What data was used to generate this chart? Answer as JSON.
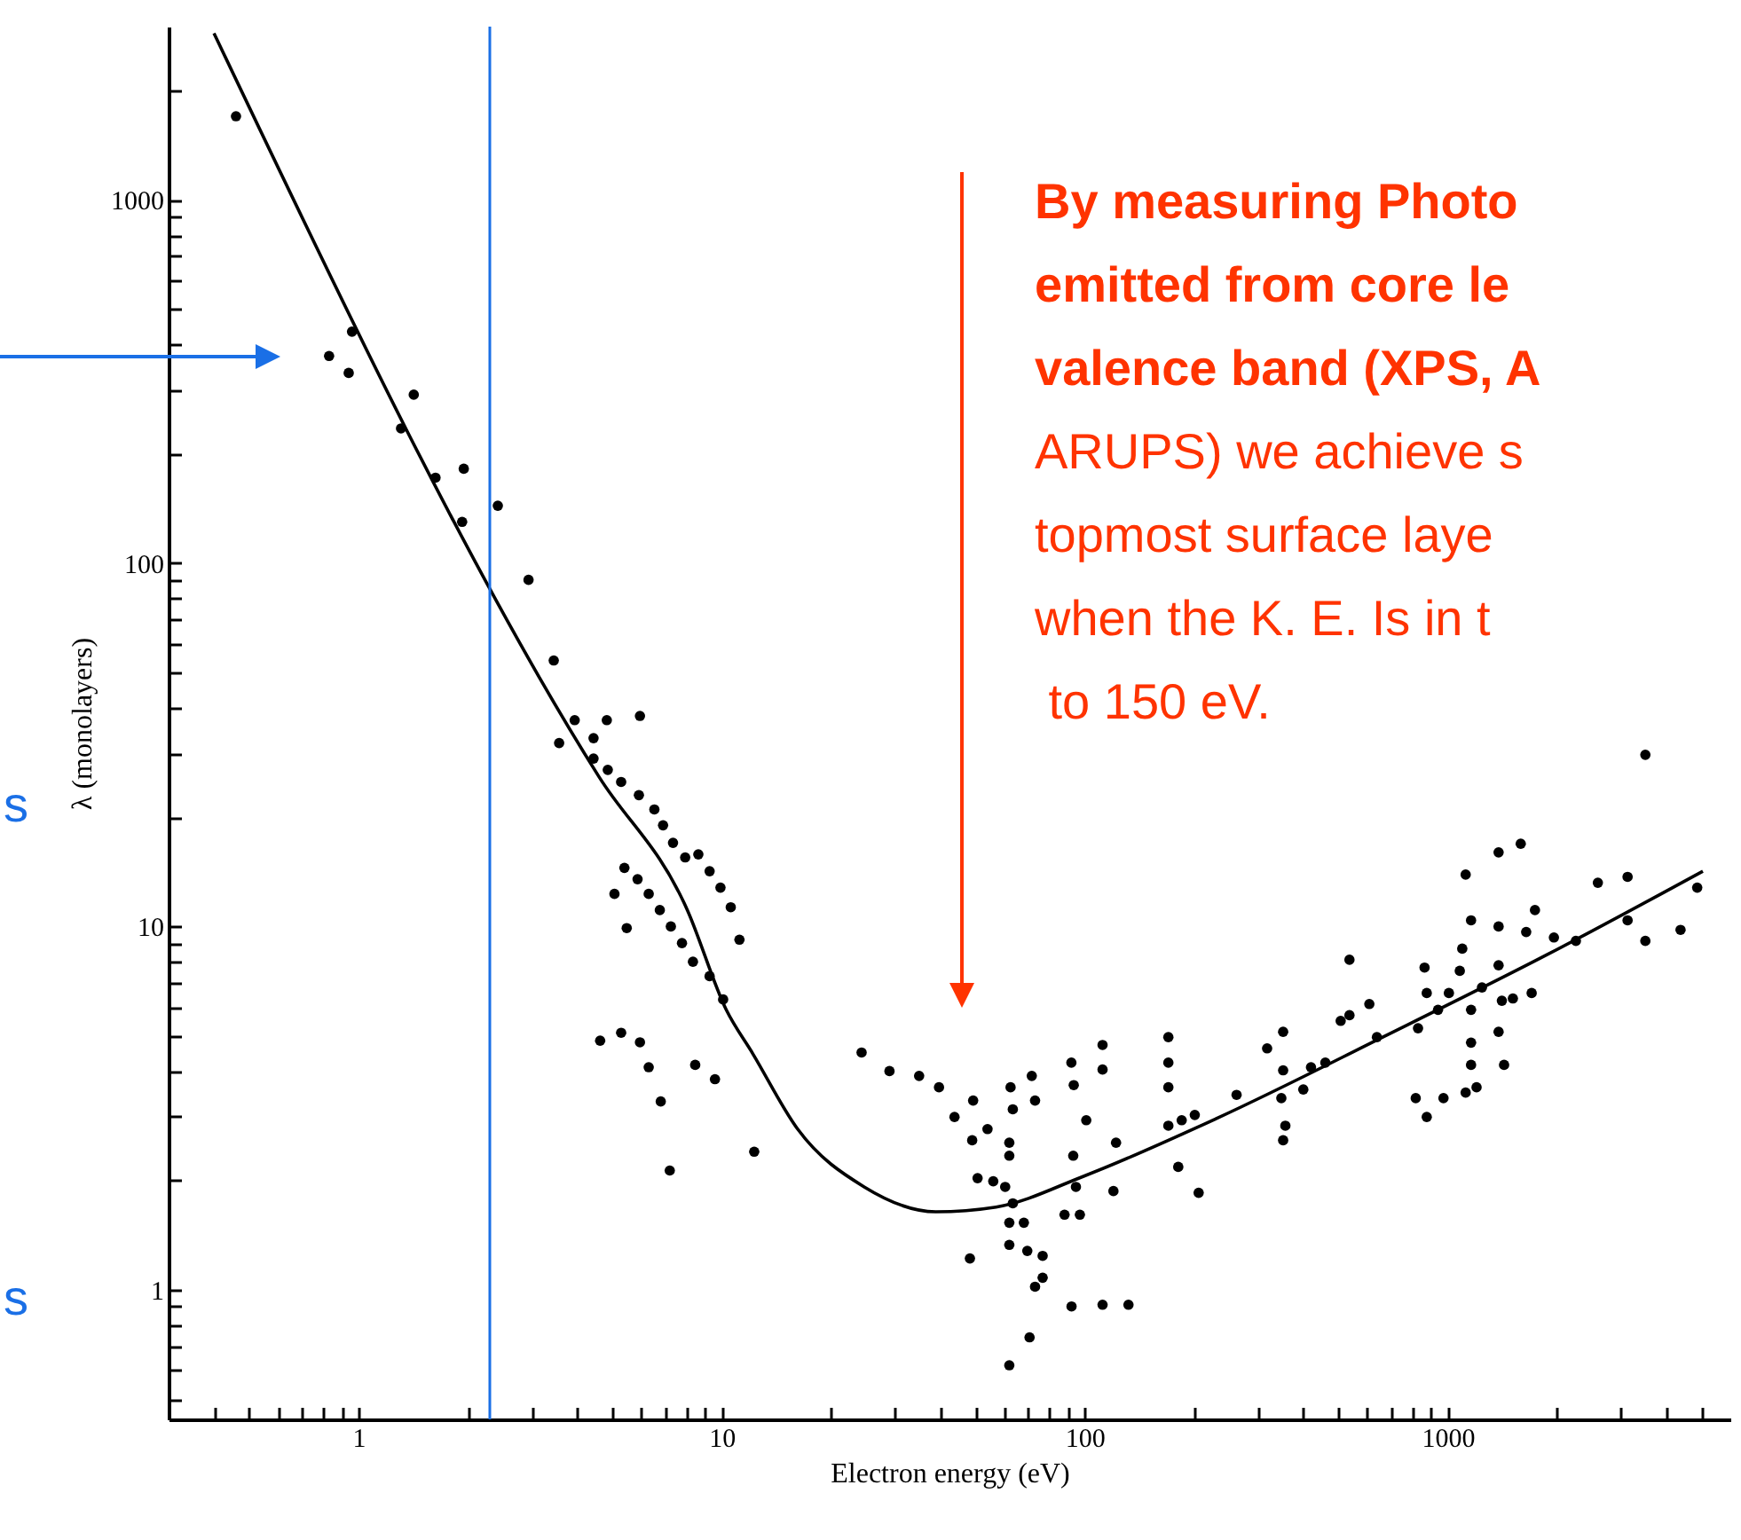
{
  "chart_data": {
    "type": "scatter",
    "xlabel": "Electron energy (eV)",
    "ylabel": "λ (monolayers)",
    "log": "xy",
    "grid": false,
    "marker": "circle",
    "xlim": [
      0.3,
      6000
    ],
    "ylim": [
      0.44,
      3000
    ],
    "xticks": [
      {
        "value": 0.4,
        "label": null
      },
      {
        "value": 0.5,
        "label": null
      },
      {
        "value": 0.6,
        "label": null
      },
      {
        "value": 0.7,
        "label": null
      },
      {
        "value": 0.8,
        "label": null
      },
      {
        "value": 0.9,
        "label": null
      },
      1,
      {
        "value": 2,
        "label": null
      },
      {
        "value": 3,
        "label": null
      },
      {
        "value": 4,
        "label": null
      },
      {
        "value": 5,
        "label": null
      },
      {
        "value": 6,
        "label": null
      },
      {
        "value": 7,
        "label": null
      },
      {
        "value": 8,
        "label": null
      },
      {
        "value": 9,
        "label": null
      },
      10,
      {
        "value": 20,
        "label": null
      },
      {
        "value": 30,
        "label": null
      },
      {
        "value": 40,
        "label": null
      },
      {
        "value": 50,
        "label": null
      },
      {
        "value": 60,
        "label": null
      },
      {
        "value": 70,
        "label": null
      },
      {
        "value": 80,
        "label": null
      },
      {
        "value": 90,
        "label": null
      },
      100,
      {
        "value": 200,
        "label": null
      },
      {
        "value": 300,
        "label": null
      },
      {
        "value": 400,
        "label": null
      },
      {
        "value": 500,
        "label": null
      },
      {
        "value": 600,
        "label": null
      },
      {
        "value": 700,
        "label": null
      },
      {
        "value": 800,
        "label": null
      },
      {
        "value": 900,
        "label": null
      },
      1000,
      {
        "value": 2000,
        "label": null
      },
      {
        "value": 3000,
        "label": null
      },
      {
        "value": 4000,
        "label": null
      },
      {
        "value": 5000,
        "label": null
      }
    ],
    "yticks": [
      {
        "value": 0.5,
        "label": null
      },
      {
        "value": 0.6,
        "label": null
      },
      {
        "value": 0.7,
        "label": null
      },
      {
        "value": 0.8,
        "label": null
      },
      {
        "value": 0.9,
        "label": null
      },
      1,
      {
        "value": 2,
        "label": null
      },
      {
        "value": 3,
        "label": null
      },
      {
        "value": 4,
        "label": null
      },
      {
        "value": 5,
        "label": null
      },
      {
        "value": 6,
        "label": null
      },
      {
        "value": 7,
        "label": null
      },
      {
        "value": 8,
        "label": null
      },
      {
        "value": 9,
        "label": null
      },
      10,
      {
        "value": 20,
        "label": null
      },
      {
        "value": 30,
        "label": null
      },
      {
        "value": 40,
        "label": null
      },
      {
        "value": 50,
        "label": null
      },
      {
        "value": 60,
        "label": null
      },
      {
        "value": 70,
        "label": null
      },
      {
        "value": 80,
        "label": null
      },
      {
        "value": 90,
        "label": null
      },
      100,
      {
        "value": 200,
        "label": null
      },
      {
        "value": 300,
        "label": null
      },
      {
        "value": 400,
        "label": null
      },
      {
        "value": 500,
        "label": null
      },
      {
        "value": 600,
        "label": null
      },
      {
        "value": 700,
        "label": null
      },
      {
        "value": 800,
        "label": null
      },
      {
        "value": 900,
        "label": null
      },
      1000,
      {
        "value": 2000,
        "label": null
      }
    ],
    "ref_lines": [
      {
        "axis": "x",
        "value": 2.3,
        "color": "#1a6fe6"
      }
    ],
    "annotations": [
      "By measuring Photo\nemitted from core le\nvalence band (XPS, A\nARUPS) we achieve s\ntopmost surface laye\nwhen the K. E. Is in t\n to 150 eV.",
      "s",
      "s"
    ],
    "series": [
      {
        "color": "#000000",
        "x": [
          0.46,
          0.83,
          0.96,
          0.94,
          1.31,
          1.42,
          1.63,
          1.95,
          1.93,
          2.42,
          2.94,
          3.45,
          3.94,
          3.57,
          4.83,
          5.96,
          4.44,
          4.44,
          4.86,
          5.29,
          5.92,
          6.53,
          6.9,
          7.35,
          7.94,
          8.63,
          9.27,
          9.93,
          10.6,
          11.2,
          5.4,
          5.87,
          6.3,
          6.76,
          7.25,
          7.78,
          8.34,
          9.27,
          10.1,
          5.07,
          5.48,
          4.63,
          5.29,
          5.96,
          6.3,
          6.8,
          7.2,
          8.46,
          9.59,
          12.3,
          24.3,
          29,
          35,
          39.7,
          43.8,
          49.3,
          49,
          54,
          48.3,
          50.7,
          56,
          62.5,
          63.4,
          62,
          62,
          60.4,
          63.4,
          62,
          68,
          62,
          69.5,
          76.6,
          73,
          76.6,
          70.5,
          62,
          71.5,
          73,
          91.9,
          112,
          93.3,
          112,
          101,
          93,
          94.6,
          88,
          97,
          122,
          120,
          92,
          112,
          132,
          170,
          170,
          170,
          170,
          185,
          201,
          181,
          206,
          262,
          318,
          352,
          352,
          348,
          357,
          352,
          400,
          420,
          460,
          507,
          536,
          536,
          638,
          608,
          816,
          875,
          973,
          1120,
          1200,
          828,
          863,
          875,
          940,
          1007,
          1079,
          1096,
          1159,
          1159,
          1159,
          1159,
          1120,
          1242,
          1380,
          1380,
          1409,
          1380,
          1429,
          1511,
          1644,
          1738,
          1702,
          1380,
          1588,
          1960,
          2253,
          2590,
          3127,
          3127,
          3500,
          3500,
          4375,
          4863
        ],
        "values": [
          1700,
          372,
          434,
          334,
          235,
          291,
          172,
          182,
          130,
          144,
          90,
          54,
          37,
          32,
          37,
          38,
          33,
          29,
          27,
          25,
          23,
          21,
          19,
          17,
          15.5,
          15.8,
          14.2,
          12.8,
          11.3,
          9.2,
          14.5,
          13.5,
          12.3,
          11.1,
          10,
          9,
          8,
          7.3,
          6.3,
          12.3,
          9.9,
          4.85,
          5.1,
          4.8,
          4.1,
          3.3,
          2.13,
          4.16,
          3.8,
          2.4,
          4.5,
          4,
          3.88,
          3.61,
          2.99,
          3.32,
          2.58,
          2.77,
          1.22,
          2.03,
          1.99,
          3.61,
          3.14,
          2.54,
          2.34,
          1.92,
          1.73,
          1.53,
          1.53,
          1.33,
          1.28,
          1.24,
          1.02,
          1.08,
          0.74,
          0.62,
          3.88,
          3.32,
          4.22,
          4.72,
          3.66,
          4.04,
          2.93,
          2.34,
          1.92,
          1.61,
          1.61,
          2.54,
          1.87,
          0.9,
          0.91,
          0.91,
          4.96,
          4.22,
          3.61,
          2.83,
          2.93,
          3.03,
          2.18,
          1.85,
          3.44,
          4.62,
          5.13,
          4.02,
          3.37,
          2.83,
          2.58,
          3.56,
          4.1,
          4.22,
          5.5,
          8.1,
          5.7,
          4.96,
          6.12,
          3.37,
          2.99,
          3.37,
          3.49,
          3.61,
          5.25,
          7.71,
          6.56,
          5.9,
          6.56,
          7.55,
          8.69,
          10.4,
          5.9,
          4.79,
          4.16,
          13.9,
          6.8,
          10,
          7.82,
          6.25,
          5.13,
          4.16,
          6.34,
          9.66,
          11.1,
          6.56,
          16,
          16.9,
          9.33,
          9.13,
          13.2,
          13.7,
          10.4,
          9.13,
          29.7,
          9.79,
          12.8
        ]
      },
      {
        "type": "line",
        "marker": "none",
        "color": "#000000",
        "x": [
          0.4,
          4.6,
          8.05,
          10.3,
          12.2,
          16.2,
          24.7,
          38.9,
          57,
          100,
          232,
          662,
          1892,
          5040
        ],
        "values": [
          2877,
          25.8,
          11.1,
          5.9,
          4.46,
          2.77,
          1.92,
          1.64,
          1.69,
          2.06,
          2.97,
          4.96,
          8.4,
          14.2
        ]
      }
    ]
  }
}
